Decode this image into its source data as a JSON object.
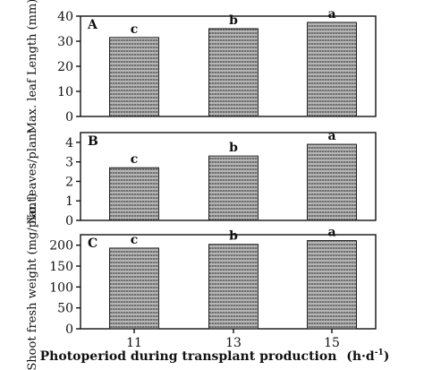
{
  "chart_data": [
    {
      "type": "bar",
      "panel": "A",
      "ylabel": "Max. leaf Length (mm)",
      "categories": [
        "11",
        "13",
        "15"
      ],
      "values": [
        31.5,
        35,
        37.5
      ],
      "letters": [
        "c",
        "b",
        "a"
      ],
      "ylim": [
        0,
        40
      ],
      "yticks": [
        "0",
        "10",
        "20",
        "30",
        "40"
      ]
    },
    {
      "type": "bar",
      "panel": "B",
      "ylabel": "No. leaves/plant",
      "categories": [
        "11",
        "13",
        "15"
      ],
      "values": [
        2.7,
        3.3,
        3.9
      ],
      "letters": [
        "c",
        "b",
        "a"
      ],
      "ylim": [
        0,
        4.5
      ],
      "yticks": [
        "0",
        "1",
        "2",
        "3",
        "4"
      ]
    },
    {
      "type": "bar",
      "panel": "C",
      "ylabel": "Shoot fresh weight (mg/plant)",
      "categories": [
        "11",
        "13",
        "15"
      ],
      "values": [
        193,
        202,
        211
      ],
      "letters": [
        "c",
        "b",
        "a"
      ],
      "ylim": [
        0,
        225
      ],
      "yticks": [
        "0",
        "50",
        "100",
        "150",
        "200"
      ]
    }
  ],
  "xlabel": "Photoperiod during transplant production",
  "xlabel_unit": "(h·d",
  "xlabel_unit_sup": "-1",
  "xlabel_unit_close": ")",
  "colors": {
    "bar_fill": "#8a8a8a",
    "axis": "#111111"
  }
}
